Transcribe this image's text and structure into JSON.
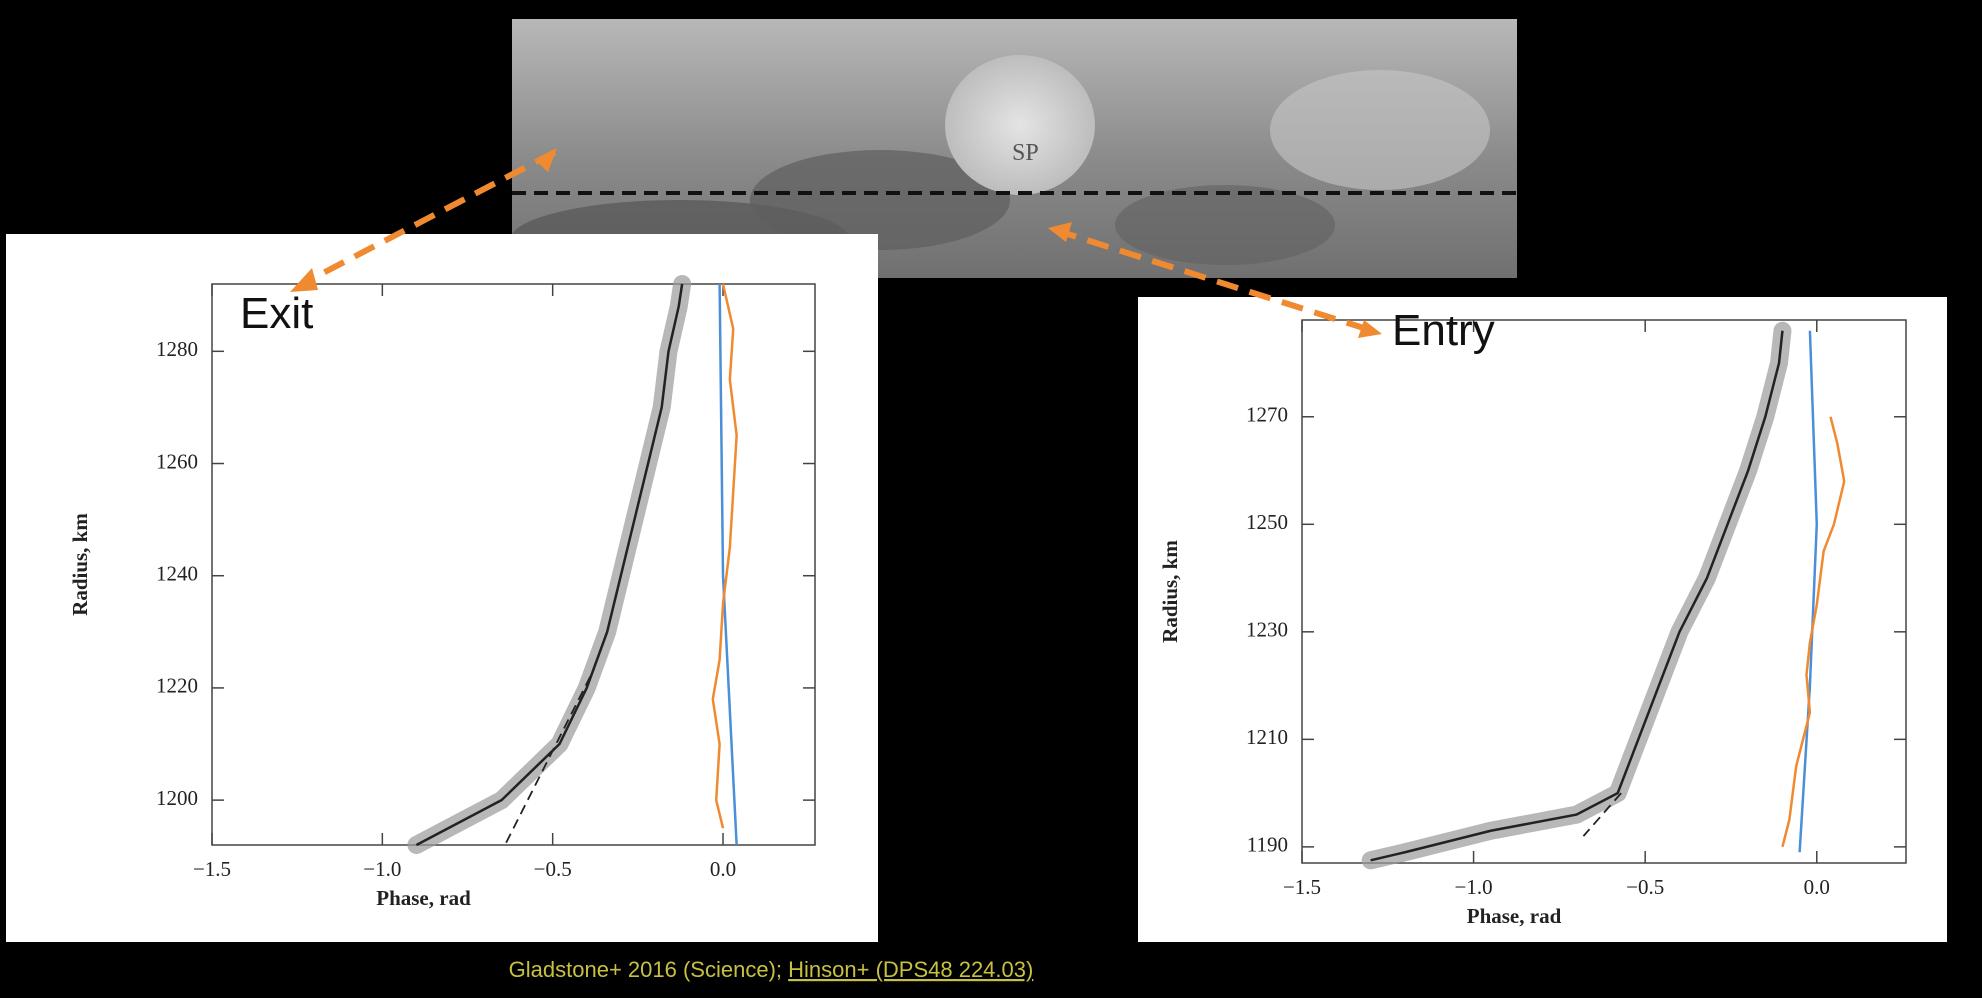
{
  "chart_data": [
    {
      "type": "line",
      "annotation": "Exit",
      "xlabel": "Phase, rad",
      "ylabel": "Radius, km",
      "xlim": [
        -1.5,
        0.27
      ],
      "ylim": [
        1192,
        1292
      ],
      "xticks": [
        {
          "value": -1.5,
          "label": "−1.5"
        },
        {
          "value": -1,
          "label": "−1.0"
        },
        {
          "value": -0.5,
          "label": "−0.5"
        },
        {
          "value": 0,
          "label": "0.0"
        }
      ],
      "yticks": [
        1200,
        1220,
        1240,
        1260,
        1280
      ],
      "series": [
        {
          "color": "#222222",
          "x": [
            -0.12,
            -0.13,
            -0.16,
            -0.18,
            -0.22,
            -0.26,
            -0.3,
            -0.34,
            -0.4,
            -0.48,
            -0.65,
            -0.9
          ],
          "y": [
            1292,
            1288,
            1280,
            1270,
            1260,
            1250,
            1240,
            1230,
            1220,
            1210,
            1200,
            1192
          ]
        },
        {
          "color": "#222222",
          "dashed": true,
          "x": [
            -0.39,
            -0.64
          ],
          "y": [
            1222,
            1192
          ]
        },
        {
          "color": "#4a8fd8",
          "x": [
            -0.01,
            0.0,
            0.04
          ],
          "y": [
            1292,
            1240,
            1192
          ]
        },
        {
          "color": "#f08a30",
          "x": [
            0.0,
            0.03,
            0.02,
            0.04,
            0.03,
            0.02,
            0.0,
            -0.01,
            -0.03,
            -0.01,
            -0.02,
            0.0
          ],
          "y": [
            1292,
            1284,
            1275,
            1265,
            1255,
            1245,
            1235,
            1225,
            1218,
            1210,
            1200,
            1195
          ]
        }
      ]
    },
    {
      "type": "line",
      "annotation": "Entry",
      "xlabel": "Phase, rad",
      "ylabel": "Radius, km",
      "xlim": [
        -1.5,
        0.26
      ],
      "ylim": [
        1187,
        1288
      ],
      "xticks": [
        {
          "value": -1.5,
          "label": "−1.5"
        },
        {
          "value": -1,
          "label": "−1.0"
        },
        {
          "value": -0.5,
          "label": "−0.5"
        },
        {
          "value": 0,
          "label": "0.0"
        }
      ],
      "yticks": [
        1190,
        1210,
        1230,
        1250,
        1270
      ],
      "series": [
        {
          "color": "#222222",
          "x": [
            -0.1,
            -0.11,
            -0.15,
            -0.2,
            -0.26,
            -0.32,
            -0.4,
            -0.46,
            -0.52,
            -0.58,
            -0.7,
            -0.95,
            -1.2,
            -1.3
          ],
          "y": [
            1286,
            1280,
            1270,
            1260,
            1250,
            1240,
            1230,
            1220,
            1210,
            1200,
            1196,
            1193,
            1189,
            1187.5
          ]
        },
        {
          "color": "#222222",
          "dashed": true,
          "x": [
            -0.57,
            -0.68
          ],
          "y": [
            1200,
            1192
          ]
        },
        {
          "color": "#4a8fd8",
          "x": [
            -0.02,
            0.0,
            -0.02,
            -0.05
          ],
          "y": [
            1286,
            1250,
            1220,
            1189
          ]
        },
        {
          "color": "#f08a30",
          "x": [
            0.04,
            0.06,
            0.08,
            0.05,
            0.02,
            0.0,
            -0.02,
            -0.03,
            -0.02,
            -0.06,
            -0.08,
            -0.1
          ],
          "y": [
            1270,
            1265,
            1258,
            1250,
            1245,
            1235,
            1228,
            1222,
            1215,
            1205,
            1195,
            1190
          ]
        }
      ]
    }
  ],
  "map": {
    "labels": [
      "SP"
    ]
  },
  "caption": {
    "source": "Gladstone+ 2016 (Science); ",
    "link": "Hinson+ (DPS48 224.03)"
  }
}
